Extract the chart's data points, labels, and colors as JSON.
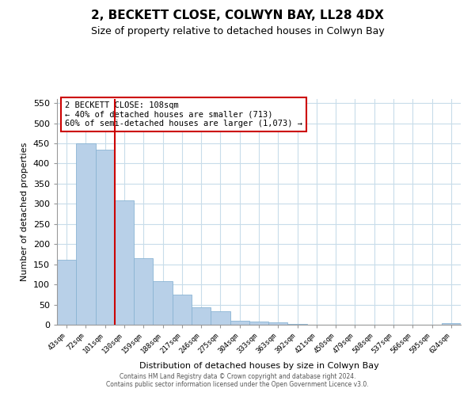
{
  "title": "2, BECKETT CLOSE, COLWYN BAY, LL28 4DX",
  "subtitle": "Size of property relative to detached houses in Colwyn Bay",
  "xlabel": "Distribution of detached houses by size in Colwyn Bay",
  "ylabel": "Number of detached properties",
  "bar_color": "#b8d0e8",
  "bar_edge_color": "#8ab4d4",
  "vline_color": "#cc0000",
  "vline_x": 2.5,
  "annotation_line1": "2 BECKETT CLOSE: 108sqm",
  "annotation_line2": "← 40% of detached houses are smaller (713)",
  "annotation_line3": "60% of semi-detached houses are larger (1,073) →",
  "annotation_box_edge": "#cc0000",
  "categories": [
    "43sqm",
    "72sqm",
    "101sqm",
    "130sqm",
    "159sqm",
    "188sqm",
    "217sqm",
    "246sqm",
    "275sqm",
    "304sqm",
    "333sqm",
    "363sqm",
    "392sqm",
    "421sqm",
    "450sqm",
    "479sqm",
    "508sqm",
    "537sqm",
    "566sqm",
    "595sqm",
    "624sqm"
  ],
  "values": [
    162,
    450,
    435,
    308,
    165,
    108,
    74,
    43,
    33,
    10,
    7,
    5,
    2,
    0,
    0,
    0,
    0,
    0,
    0,
    0,
    3
  ],
  "ylim": [
    0,
    560
  ],
  "yticks": [
    0,
    50,
    100,
    150,
    200,
    250,
    300,
    350,
    400,
    450,
    500,
    550
  ],
  "footer_text": "Contains HM Land Registry data © Crown copyright and database right 2024.\nContains public sector information licensed under the Open Government Licence v3.0.",
  "background_color": "#ffffff",
  "grid_color": "#c8dcea"
}
